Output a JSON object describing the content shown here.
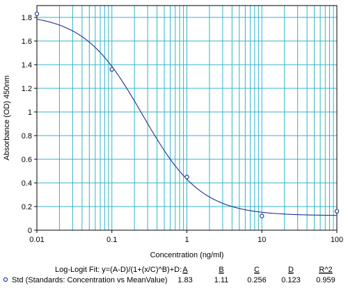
{
  "chart_data": {
    "type": "scatter",
    "x_scale": "log",
    "y_scale": "linear",
    "xlabel": "Concentration (ng/ml)",
    "ylabel": "Absorbance (OD) 450nm",
    "xlim": [
      0.01,
      100
    ],
    "ylim": [
      0,
      1.9
    ],
    "grid": true,
    "x_ticks": [
      "0.01",
      "0.1",
      "1",
      "10",
      "100"
    ],
    "y_ticks": [
      "0",
      "0.2",
      "0.4",
      "0.6",
      "0.8",
      "1",
      "1.2",
      "1.4",
      "1.6",
      "1.8"
    ],
    "series": [
      {
        "name": "Std (Standards: Concentration vs MeanValue)",
        "x": [
          0.01,
          0.1,
          1,
          10,
          100
        ],
        "y": [
          1.83,
          1.36,
          0.45,
          0.12,
          0.16
        ],
        "marker": "circle",
        "color": "#1f3b9c"
      }
    ],
    "fit": {
      "label": "Log-Logit Fit: y=(A-D)/(1+(x/C)^B)+D:",
      "params": {
        "A": {
          "label": "A",
          "value": "1.83"
        },
        "B": {
          "label": "B",
          "value": "1.11"
        },
        "C": {
          "label": "C",
          "value": "0.256"
        },
        "D": {
          "label": "D",
          "value": "0.123"
        },
        "R2": {
          "label": "R^2",
          "value": "0.959"
        }
      },
      "color": "#1f2f8f"
    },
    "legend_placement": "bottom",
    "colors": {
      "grid": "#33b3c9",
      "axis": "#000000",
      "curve": "#1f2f8f",
      "marker": "#1f3b9c"
    }
  }
}
